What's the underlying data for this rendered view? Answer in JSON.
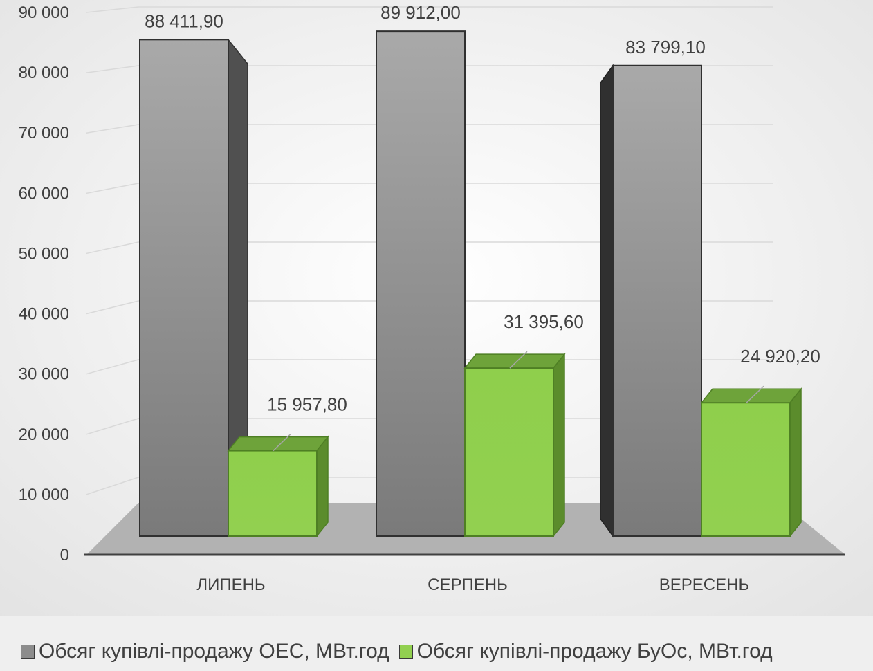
{
  "chart_data": {
    "type": "bar",
    "categories": [
      "ЛИПЕНЬ",
      "СЕРПЕНЬ",
      "ВЕРЕСЕНЬ"
    ],
    "series": [
      {
        "name": "Обсяг купівлі-продажу ОЕС, МВт.год",
        "values": [
          88411.9,
          89912.0,
          83799.1
        ],
        "labels": [
          "88 411,90",
          "89 912,00",
          "83 799,10"
        ],
        "color": "#8c8c8c"
      },
      {
        "name": "Обсяг купівлі-продажу БуОс, МВт.год",
        "values": [
          15957.8,
          31395.6,
          24920.2
        ],
        "labels": [
          "15 957,80",
          "31 395,60",
          "24 920,20"
        ],
        "color": "#92d050"
      }
    ],
    "ylim": [
      0,
      90000
    ],
    "yticks": [
      0,
      10000,
      20000,
      30000,
      40000,
      50000,
      60000,
      70000,
      80000,
      90000
    ],
    "ytick_labels": [
      "0",
      "10 000",
      "20 000",
      "30 000",
      "40 000",
      "50 000",
      "60 000",
      "70 000",
      "80 000",
      "90 000"
    ],
    "grid": true,
    "legend_position": "bottom",
    "style": "3d-clustered-column"
  }
}
